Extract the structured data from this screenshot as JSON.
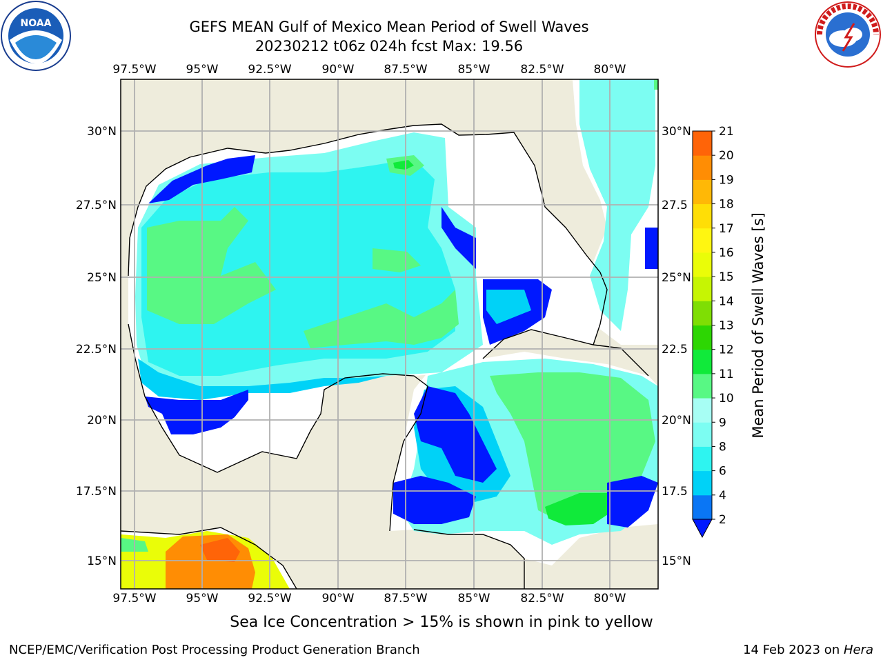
{
  "title_line1": "GEFS MEAN Gulf of Mexico Mean Period of Swell Waves",
  "title_line2": "20230212 t06z 024h fcst   Max: 19.56",
  "logos": {
    "left": "noaa-logo",
    "right": "nws-logo"
  },
  "map": {
    "lon_ticks": [
      "97.5°W",
      "95°W",
      "92.5°W",
      "90°W",
      "87.5°W",
      "85°W",
      "82.5°W",
      "80°W"
    ],
    "lat_ticks_left": [
      "30°N",
      "27.5°N",
      "25°N",
      "22.5°N",
      "20°N",
      "17.5°N",
      "15°N"
    ],
    "lat_ticks_right": [
      "30°N",
      "27.5",
      "25°N",
      "22.5",
      "20°N",
      "17.5",
      "15°N"
    ],
    "land_color": "#eeecdc",
    "no_data_color": "#ffffff",
    "grid_color": "#b0b0b0"
  },
  "colorbar": {
    "label": "Mean Period of Swell Waves [s]",
    "tick_labels": [
      "2",
      "4",
      "6",
      "8",
      "9",
      "10",
      "11",
      "12",
      "13",
      "14",
      "15",
      "16",
      "17",
      "18",
      "19",
      "20",
      "21"
    ],
    "colors": [
      "#0a76f5",
      "#00d2f7",
      "#2ef4f0",
      "#7cfdf2",
      "#a7fef4",
      "#58f884",
      "#10ea3a",
      "#2dd603",
      "#7fde04",
      "#c6f503",
      "#eafd08",
      "#fff611",
      "#ffde06",
      "#ffb806",
      "#ff8d04",
      "#ff6408",
      "#ff3a07",
      "#f70c05"
    ],
    "extend_color": "#0018ff"
  },
  "caption": "Sea Ice Concentration > 15% is shown in pink to yellow",
  "footer_left": "NCEP/EMC/Verification Post Processing Product Generation Branch",
  "footer_right_prefix": "14 Feb 2023 on ",
  "footer_right_host": "Hera"
}
